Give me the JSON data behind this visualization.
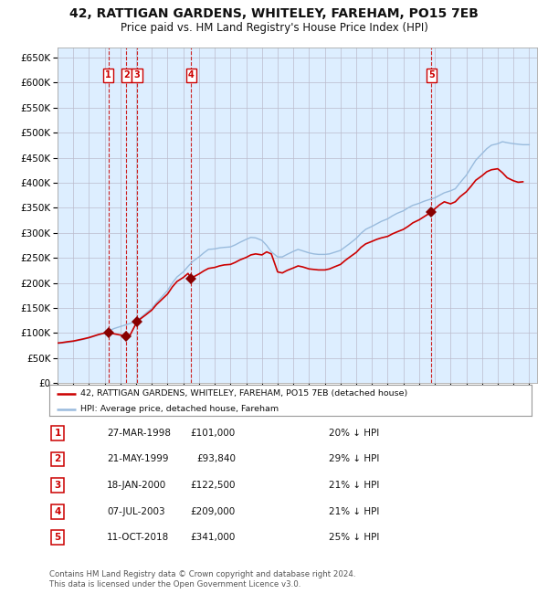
{
  "title": "42, RATTIGAN GARDENS, WHITELEY, FAREHAM, PO15 7EB",
  "subtitle": "Price paid vs. HM Land Registry's House Price Index (HPI)",
  "title_fontsize": 10,
  "subtitle_fontsize": 8.5,
  "ylim": [
    0,
    670000
  ],
  "yticks": [
    0,
    50000,
    100000,
    150000,
    200000,
    250000,
    300000,
    350000,
    400000,
    450000,
    500000,
    550000,
    600000,
    650000
  ],
  "xlim_start": 1995.0,
  "xlim_end": 2025.5,
  "background_color": "#ffffff",
  "plot_bg_color": "#ddeeff",
  "grid_color": "#bbbbcc",
  "hpi_color": "#99bbdd",
  "price_color": "#cc0000",
  "sale_marker_color": "#880000",
  "dashed_line_color": "#cc2222",
  "legend_label_price": "42, RATTIGAN GARDENS, WHITELEY, FAREHAM, PO15 7EB (detached house)",
  "legend_label_hpi": "HPI: Average price, detached house, Fareham",
  "footer_text": "Contains HM Land Registry data © Crown copyright and database right 2024.\nThis data is licensed under the Open Government Licence v3.0.",
  "sales": [
    {
      "id": 1,
      "date": 1998.23,
      "price": 101000
    },
    {
      "id": 2,
      "date": 1999.38,
      "price": 93840
    },
    {
      "id": 3,
      "date": 2000.05,
      "price": 122500
    },
    {
      "id": 4,
      "date": 2003.51,
      "price": 209000
    },
    {
      "id": 5,
      "date": 2018.78,
      "price": 341000
    }
  ],
  "table_rows": [
    {
      "id": 1,
      "date": "27-MAR-1998",
      "price": "£101,000",
      "pct": "20% ↓ HPI"
    },
    {
      "id": 2,
      "date": "21-MAY-1999",
      "price": "£93,840",
      "pct": "29% ↓ HPI"
    },
    {
      "id": 3,
      "date": "18-JAN-2000",
      "price": "£122,500",
      "pct": "21% ↓ HPI"
    },
    {
      "id": 4,
      "date": "07-JUL-2003",
      "price": "£209,000",
      "pct": "21% ↓ HPI"
    },
    {
      "id": 5,
      "date": "11-OCT-2018",
      "price": "£341,000",
      "pct": "25% ↓ HPI"
    }
  ],
  "hpi_curve": [
    [
      1995.0,
      79000
    ],
    [
      1995.3,
      80000
    ],
    [
      1995.6,
      81000
    ],
    [
      1996.0,
      83000
    ],
    [
      1996.3,
      85000
    ],
    [
      1996.6,
      87000
    ],
    [
      1997.0,
      90000
    ],
    [
      1997.3,
      93000
    ],
    [
      1997.6,
      96000
    ],
    [
      1998.0,
      100000
    ],
    [
      1998.3,
      105000
    ],
    [
      1998.6,
      109000
    ],
    [
      1999.0,
      113000
    ],
    [
      1999.3,
      116000
    ],
    [
      1999.6,
      119000
    ],
    [
      2000.0,
      124000
    ],
    [
      2000.3,
      131000
    ],
    [
      2000.6,
      139000
    ],
    [
      2001.0,
      149000
    ],
    [
      2001.3,
      161000
    ],
    [
      2001.6,
      171000
    ],
    [
      2002.0,
      185000
    ],
    [
      2002.3,
      200000
    ],
    [
      2002.6,
      212000
    ],
    [
      2003.0,
      222000
    ],
    [
      2003.3,
      233000
    ],
    [
      2003.6,
      243000
    ],
    [
      2004.0,
      252000
    ],
    [
      2004.3,
      260000
    ],
    [
      2004.6,
      267000
    ],
    [
      2005.0,
      268000
    ],
    [
      2005.3,
      270000
    ],
    [
      2005.6,
      271000
    ],
    [
      2006.0,
      272000
    ],
    [
      2006.3,
      276000
    ],
    [
      2006.6,
      281000
    ],
    [
      2007.0,
      287000
    ],
    [
      2007.3,
      291000
    ],
    [
      2007.6,
      290000
    ],
    [
      2008.0,
      285000
    ],
    [
      2008.3,
      275000
    ],
    [
      2008.6,
      262000
    ],
    [
      2009.0,
      252000
    ],
    [
      2009.3,
      252000
    ],
    [
      2009.6,
      257000
    ],
    [
      2010.0,
      263000
    ],
    [
      2010.3,
      267000
    ],
    [
      2010.6,
      264000
    ],
    [
      2011.0,
      260000
    ],
    [
      2011.3,
      258000
    ],
    [
      2011.6,
      257000
    ],
    [
      2012.0,
      257000
    ],
    [
      2012.3,
      258000
    ],
    [
      2012.6,
      261000
    ],
    [
      2013.0,
      265000
    ],
    [
      2013.3,
      272000
    ],
    [
      2013.6,
      279000
    ],
    [
      2014.0,
      289000
    ],
    [
      2014.3,
      299000
    ],
    [
      2014.6,
      307000
    ],
    [
      2015.0,
      313000
    ],
    [
      2015.3,
      318000
    ],
    [
      2015.6,
      323000
    ],
    [
      2016.0,
      328000
    ],
    [
      2016.3,
      334000
    ],
    [
      2016.6,
      339000
    ],
    [
      2017.0,
      344000
    ],
    [
      2017.3,
      350000
    ],
    [
      2017.6,
      355000
    ],
    [
      2018.0,
      359000
    ],
    [
      2018.3,
      363000
    ],
    [
      2018.6,
      366000
    ],
    [
      2018.78,
      368000
    ],
    [
      2019.0,
      370000
    ],
    [
      2019.3,
      375000
    ],
    [
      2019.6,
      380000
    ],
    [
      2020.0,
      384000
    ],
    [
      2020.3,
      388000
    ],
    [
      2020.6,
      400000
    ],
    [
      2021.0,
      415000
    ],
    [
      2021.3,
      430000
    ],
    [
      2021.6,
      445000
    ],
    [
      2022.0,
      458000
    ],
    [
      2022.3,
      468000
    ],
    [
      2022.6,
      475000
    ],
    [
      2023.0,
      478000
    ],
    [
      2023.3,
      482000
    ],
    [
      2023.6,
      480000
    ],
    [
      2024.0,
      478000
    ],
    [
      2024.3,
      477000
    ],
    [
      2024.6,
      476000
    ],
    [
      2025.0,
      476000
    ]
  ],
  "price_curve": [
    [
      1995.0,
      80000
    ],
    [
      1995.3,
      81000
    ],
    [
      1995.6,
      82500
    ],
    [
      1996.0,
      84000
    ],
    [
      1996.3,
      86000
    ],
    [
      1996.6,
      88000
    ],
    [
      1997.0,
      91000
    ],
    [
      1997.3,
      94000
    ],
    [
      1997.6,
      97000
    ],
    [
      1998.0,
      100000
    ],
    [
      1998.23,
      101000
    ],
    [
      1998.5,
      99000
    ],
    [
      1999.0,
      96000
    ],
    [
      1999.38,
      93840
    ],
    [
      1999.6,
      95000
    ],
    [
      2000.05,
      122500
    ],
    [
      2000.3,
      129000
    ],
    [
      2000.6,
      136000
    ],
    [
      2001.0,
      146000
    ],
    [
      2001.3,
      157000
    ],
    [
      2001.6,
      166000
    ],
    [
      2002.0,
      178000
    ],
    [
      2002.3,
      192000
    ],
    [
      2002.6,
      203000
    ],
    [
      2003.0,
      211000
    ],
    [
      2003.3,
      219000
    ],
    [
      2003.51,
      209000
    ],
    [
      2003.7,
      213000
    ],
    [
      2004.0,
      218000
    ],
    [
      2004.3,
      224000
    ],
    [
      2004.6,
      229000
    ],
    [
      2005.0,
      231000
    ],
    [
      2005.3,
      234000
    ],
    [
      2005.6,
      236000
    ],
    [
      2006.0,
      237000
    ],
    [
      2006.3,
      241000
    ],
    [
      2006.6,
      246000
    ],
    [
      2007.0,
      251000
    ],
    [
      2007.3,
      256000
    ],
    [
      2007.6,
      258000
    ],
    [
      2008.0,
      256000
    ],
    [
      2008.3,
      262000
    ],
    [
      2008.6,
      258000
    ],
    [
      2009.0,
      222000
    ],
    [
      2009.3,
      220000
    ],
    [
      2009.6,
      225000
    ],
    [
      2010.0,
      230000
    ],
    [
      2010.3,
      234000
    ],
    [
      2010.6,
      232000
    ],
    [
      2011.0,
      228000
    ],
    [
      2011.3,
      227000
    ],
    [
      2011.6,
      226000
    ],
    [
      2012.0,
      226000
    ],
    [
      2012.3,
      228000
    ],
    [
      2012.6,
      232000
    ],
    [
      2013.0,
      237000
    ],
    [
      2013.3,
      245000
    ],
    [
      2013.6,
      252000
    ],
    [
      2014.0,
      261000
    ],
    [
      2014.3,
      271000
    ],
    [
      2014.6,
      278000
    ],
    [
      2015.0,
      283000
    ],
    [
      2015.3,
      287000
    ],
    [
      2015.6,
      290000
    ],
    [
      2016.0,
      293000
    ],
    [
      2016.3,
      298000
    ],
    [
      2016.6,
      302000
    ],
    [
      2017.0,
      307000
    ],
    [
      2017.3,
      313000
    ],
    [
      2017.6,
      320000
    ],
    [
      2018.0,
      326000
    ],
    [
      2018.3,
      332000
    ],
    [
      2018.6,
      338000
    ],
    [
      2018.78,
      341000
    ],
    [
      2019.0,
      348000
    ],
    [
      2019.3,
      356000
    ],
    [
      2019.6,
      362000
    ],
    [
      2020.0,
      358000
    ],
    [
      2020.3,
      362000
    ],
    [
      2020.6,
      372000
    ],
    [
      2021.0,
      382000
    ],
    [
      2021.3,
      393000
    ],
    [
      2021.6,
      405000
    ],
    [
      2022.0,
      414000
    ],
    [
      2022.3,
      422000
    ],
    [
      2022.6,
      426000
    ],
    [
      2023.0,
      428000
    ],
    [
      2023.3,
      420000
    ],
    [
      2023.6,
      410000
    ],
    [
      2024.0,
      404000
    ],
    [
      2024.3,
      401000
    ],
    [
      2024.6,
      402000
    ]
  ]
}
